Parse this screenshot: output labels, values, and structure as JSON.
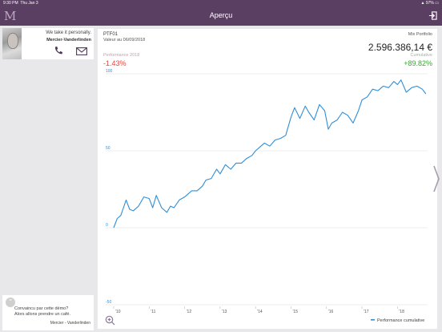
{
  "status_bar": {
    "time": "9:30 PM",
    "date": "Thu Jan 3",
    "battery": "97%"
  },
  "nav": {
    "logo": "M",
    "title": "Aperçu"
  },
  "contact": {
    "tagline": "We take it personally.",
    "name": "Mercier-Vanderlinden"
  },
  "promo": {
    "line1": "Convaincu par cette démo?",
    "line2": "Alors allons prendre un café.",
    "signature": "Mercier - Vanderlinden"
  },
  "portfolio": {
    "name": "PTF01",
    "valuation_date": "Valeur au 06/09/2018",
    "type": "Mix Portfolio",
    "amount": "2.596.386,14 €",
    "perf_label": "Performance 2018",
    "perf_value": "-1.43%",
    "cum_label": "Cumulative",
    "cum_value": "+89.82%"
  },
  "colors": {
    "brand": "#5b3f63",
    "line": "#2f8fd8",
    "negative": "#e0453b",
    "positive": "#3aa335"
  },
  "chart_data": {
    "type": "line",
    "x_ticks": [
      "'10",
      "'11",
      "'12",
      "'13",
      "'14",
      "'15",
      "'16",
      "'17",
      "'18"
    ],
    "y_ticks": [
      "100",
      "50",
      "0",
      "-50"
    ],
    "ylim": [
      -50,
      100
    ],
    "xlim": [
      2010,
      2018.85
    ],
    "grid": true,
    "legend": "bottom-right",
    "series": [
      {
        "name": "Performance cumulative",
        "x": [
          2010.0,
          2010.1,
          2010.2,
          2010.35,
          2010.45,
          2010.55,
          2010.7,
          2010.85,
          2011.0,
          2011.1,
          2011.2,
          2011.35,
          2011.5,
          2011.6,
          2011.7,
          2011.85,
          2012.0,
          2012.1,
          2012.2,
          2012.35,
          2012.5,
          2012.6,
          2012.75,
          2012.9,
          2013.0,
          2013.15,
          2013.3,
          2013.45,
          2013.6,
          2013.75,
          2013.9,
          2014.0,
          2014.1,
          2014.25,
          2014.4,
          2014.55,
          2014.7,
          2014.85,
          2015.0,
          2015.1,
          2015.25,
          2015.4,
          2015.5,
          2015.65,
          2015.8,
          2015.95,
          2016.05,
          2016.15,
          2016.3,
          2016.45,
          2016.6,
          2016.75,
          2016.9,
          2017.0,
          2017.15,
          2017.3,
          2017.45,
          2017.6,
          2017.75,
          2017.9,
          2018.0,
          2018.1,
          2018.25,
          2018.4,
          2018.55,
          2018.7,
          2018.8
        ],
        "y": [
          0,
          6,
          8,
          18,
          12,
          11,
          14,
          20,
          19,
          13,
          21,
          13,
          10,
          14,
          13,
          18,
          20,
          22,
          24,
          24,
          27,
          31,
          32,
          38,
          35,
          41,
          38,
          42,
          42,
          45,
          47,
          50,
          52,
          55,
          53,
          57,
          58,
          60,
          72,
          78,
          71,
          79,
          75,
          70,
          80,
          76,
          64,
          68,
          70,
          75,
          73,
          68,
          76,
          83,
          85,
          90,
          89,
          92,
          91,
          95,
          93,
          96,
          88,
          91,
          92,
          90,
          87
        ]
      }
    ]
  }
}
